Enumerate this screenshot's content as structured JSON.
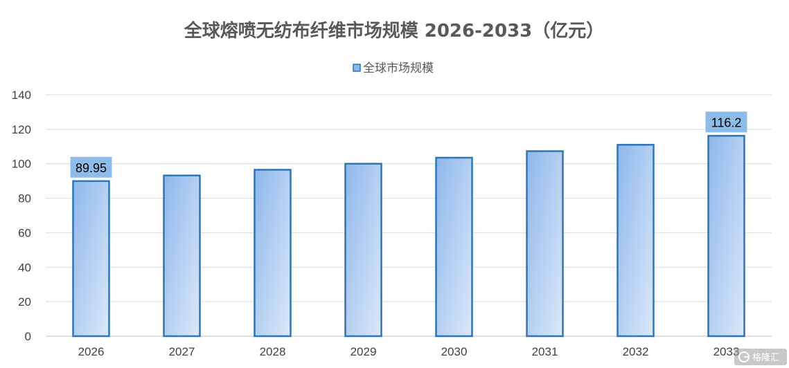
{
  "chart_data": {
    "type": "bar",
    "title": "全球熔喷无纺布纤维市场规模 2026-2033（亿元）",
    "xlabel": "",
    "ylabel": "",
    "categories": [
      "2026",
      "2027",
      "2028",
      "2029",
      "2030",
      "2031",
      "2032",
      "2033"
    ],
    "series": [
      {
        "name": "全球市场规模",
        "values": [
          89.95,
          93.2,
          96.5,
          100.0,
          103.5,
          107.3,
          111.0,
          116.2
        ],
        "color": "#2E75B6"
      }
    ],
    "labeled_points": [
      {
        "index": 0,
        "label": "89.95"
      },
      {
        "index": 7,
        "label": "116.2"
      }
    ],
    "ylim": [
      0,
      140
    ],
    "yticks": [
      0,
      20,
      40,
      60,
      80,
      100,
      120,
      140
    ],
    "grid": true,
    "legend_position": "top-center",
    "colors": {
      "bar_fill_top": "#8DB7EC",
      "bar_fill_bottom": "#DCE8F8",
      "bar_stroke": "#2E75B6",
      "label_background": "#8DBCE8",
      "gridline": "#D9D9D9"
    }
  },
  "watermark": {
    "text": "格隆汇",
    "icon": "logo-g-icon"
  }
}
